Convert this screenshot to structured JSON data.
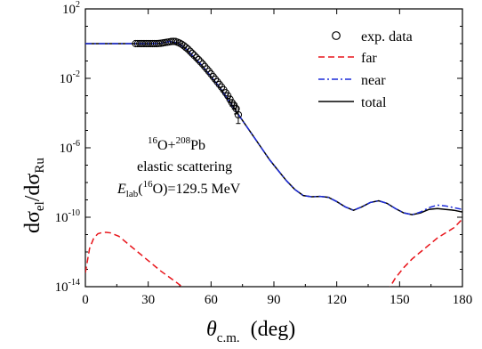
{
  "chart_data": {
    "type": "line",
    "xlabel": "θ_c.m. (deg)",
    "ylabel": "dσ_el/dσ_Ru",
    "xlim": [
      0,
      180
    ],
    "ylim_log10": [
      -14,
      2
    ],
    "yscale": "log",
    "x_ticks": [
      0,
      30,
      60,
      90,
      120,
      150,
      180
    ],
    "y_ticks": [
      {
        "mant": "10",
        "exp": "2",
        "value": 2
      },
      {
        "mant": "10",
        "exp": "-2",
        "value": -2
      },
      {
        "mant": "10",
        "exp": "-6",
        "value": -6
      },
      {
        "mant": "10",
        "exp": "-10",
        "value": -10
      },
      {
        "mant": "10",
        "exp": "-14",
        "value": -14
      }
    ],
    "legend": {
      "placement": "top-right",
      "entries": [
        {
          "label": "exp. data",
          "style": "circle",
          "color": "#000000"
        },
        {
          "label": "far",
          "style": "dashed",
          "color": "#e8141a"
        },
        {
          "label": "near",
          "style": "dashdot",
          "color": "#1c2bd8"
        },
        {
          "label": "total",
          "style": "solid",
          "color": "#000000"
        }
      ]
    },
    "annotation": {
      "line1": {
        "s1": "16",
        "t1": "O+",
        "s2": "208",
        "t2": "Pb"
      },
      "line2": "elastic scattering",
      "line3": {
        "e": "E",
        "sub": "lab",
        "open": "(",
        "sup": "16",
        "close": "O)=129.5 MeV"
      }
    },
    "series": [
      {
        "name": "total",
        "color": "#000000",
        "dash": "",
        "x": [
          0,
          20,
          30,
          36,
          40,
          44,
          48,
          52,
          56,
          60,
          64,
          68,
          72,
          76,
          80,
          84,
          88,
          92,
          96,
          100,
          104,
          108,
          112,
          116,
          120,
          124,
          128,
          132,
          136,
          140,
          144,
          148,
          152,
          156,
          160,
          164,
          168,
          172,
          176,
          180
        ],
        "log10y": [
          0,
          0,
          0,
          0.02,
          0.12,
          0.05,
          -0.3,
          -0.8,
          -1.3,
          -1.9,
          -2.5,
          -3.2,
          -3.9,
          -4.6,
          -5.3,
          -6.0,
          -6.7,
          -7.3,
          -7.9,
          -8.4,
          -8.75,
          -8.82,
          -8.8,
          -8.85,
          -9.1,
          -9.4,
          -9.6,
          -9.4,
          -9.15,
          -9.05,
          -9.2,
          -9.5,
          -9.75,
          -9.85,
          -9.75,
          -9.55,
          -9.5,
          -9.55,
          -9.6,
          -9.7
        ]
      },
      {
        "name": "near",
        "color": "#1c2bd8",
        "dash": "7,3,2,3",
        "x": [
          0,
          20,
          30,
          36,
          40,
          44,
          48,
          52,
          56,
          60,
          64,
          68,
          72,
          76,
          80,
          84,
          88,
          92,
          96,
          100,
          104,
          108,
          112,
          116,
          120,
          124,
          128,
          132,
          136,
          140,
          144,
          148,
          152,
          156,
          160,
          164,
          168,
          172,
          176,
          180
        ],
        "log10y": [
          0,
          0,
          0,
          0.02,
          0.12,
          0.05,
          -0.3,
          -0.8,
          -1.3,
          -1.9,
          -2.5,
          -3.2,
          -3.9,
          -4.6,
          -5.3,
          -6.0,
          -6.7,
          -7.3,
          -7.9,
          -8.4,
          -8.75,
          -8.82,
          -8.8,
          -8.85,
          -9.1,
          -9.4,
          -9.6,
          -9.4,
          -9.15,
          -9.05,
          -9.2,
          -9.5,
          -9.75,
          -9.85,
          -9.7,
          -9.45,
          -9.3,
          -9.35,
          -9.45,
          -9.55
        ]
      },
      {
        "name": "far",
        "color": "#e8141a",
        "dash": "7,4",
        "x": [
          0,
          2,
          4,
          6,
          8,
          10,
          12,
          16,
          20,
          24,
          28,
          32,
          36,
          40,
          44,
          48,
          52
        ],
        "log10y": [
          -13.2,
          -11.8,
          -11.2,
          -10.95,
          -10.88,
          -10.87,
          -10.9,
          -11.1,
          -11.5,
          -11.9,
          -12.3,
          -12.7,
          -13.1,
          -13.45,
          -13.8,
          -14.2,
          -14.6
        ],
        "x2": [
          144,
          148,
          152,
          156,
          160,
          164,
          168,
          172,
          176,
          180
        ],
        "log10y2": [
          -14.3,
          -13.5,
          -12.9,
          -12.4,
          -12.0,
          -11.6,
          -11.2,
          -10.9,
          -10.6,
          -10.1
        ]
      }
    ],
    "exp_data": {
      "x": [
        24,
        25,
        26,
        27,
        28,
        29,
        30,
        31,
        32,
        33,
        34,
        35,
        36,
        37,
        38,
        39,
        40,
        41,
        42,
        43,
        44,
        45,
        46,
        47,
        48,
        49,
        50,
        51,
        52,
        53,
        54,
        55,
        56,
        57,
        58,
        59,
        60,
        61,
        62,
        63,
        64,
        65,
        66,
        67,
        68,
        69,
        70,
        71,
        72,
        73
      ],
      "log10y": [
        0,
        0,
        0,
        0,
        0,
        0,
        0,
        0,
        0,
        0,
        0,
        0.01,
        0.02,
        0.04,
        0.06,
        0.08,
        0.1,
        0.12,
        0.13,
        0.12,
        0.08,
        0.03,
        -0.04,
        -0.12,
        -0.22,
        -0.32,
        -0.44,
        -0.56,
        -0.68,
        -0.8,
        -0.92,
        -1.05,
        -1.18,
        -1.32,
        -1.46,
        -1.6,
        -1.75,
        -1.9,
        -2.05,
        -2.2,
        -2.35,
        -2.5,
        -2.66,
        -2.83,
        -3.0,
        -3.2,
        -3.4,
        -3.55,
        -3.75,
        -4.1
      ],
      "err": [
        0,
        0,
        0,
        0,
        0,
        0,
        0,
        0,
        0,
        0,
        0,
        0,
        0,
        0,
        0,
        0,
        0,
        0,
        0,
        0,
        0,
        0,
        0,
        0,
        0,
        0,
        0,
        0,
        0,
        0,
        0,
        0,
        0,
        0,
        0,
        0,
        0,
        0,
        0,
        0,
        0,
        0,
        0,
        0,
        0.15,
        0.18,
        0.2,
        0.22,
        0.3,
        0.5
      ]
    }
  }
}
